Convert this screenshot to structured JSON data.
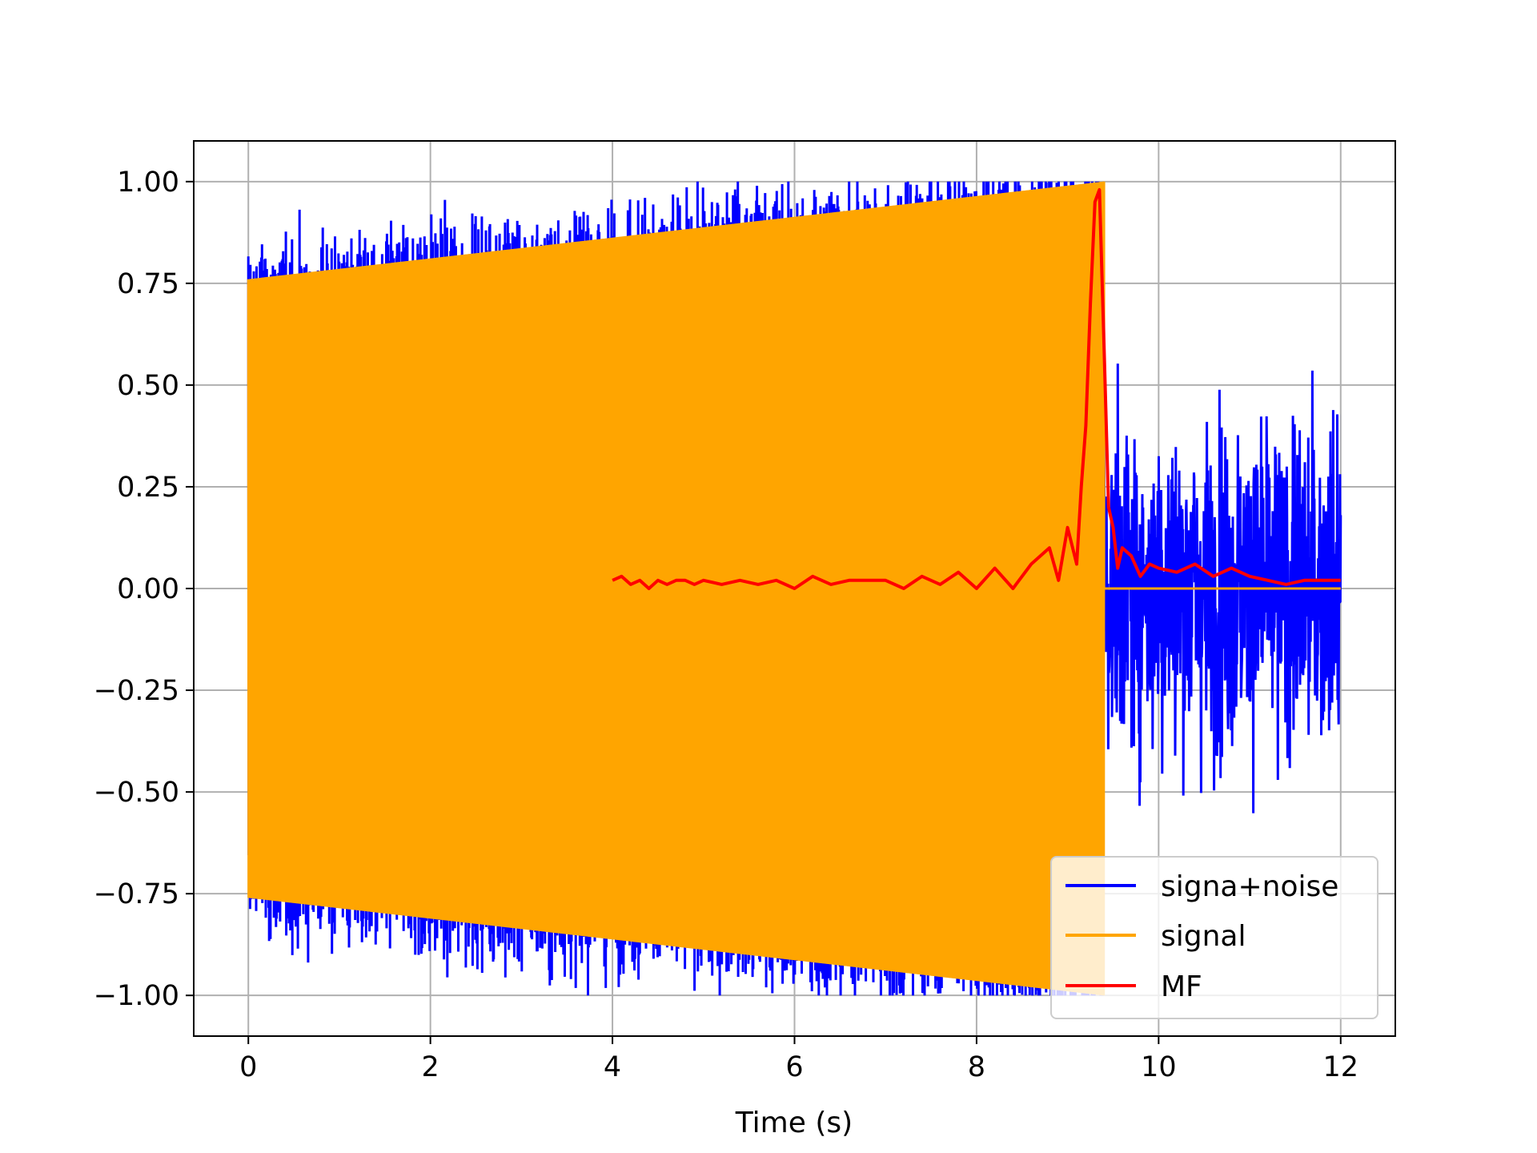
{
  "chart_data": {
    "type": "line",
    "title": "",
    "xlabel": "Time (s)",
    "ylabel": "",
    "xlim": [
      -0.6,
      12.6
    ],
    "ylim": [
      -1.1,
      1.1
    ],
    "grid": true,
    "legend_position": "lower-right",
    "x_ticks": [
      0,
      2,
      4,
      6,
      8,
      10,
      12
    ],
    "x_tick_labels": [
      "0",
      "2",
      "4",
      "6",
      "8",
      "10",
      "12"
    ],
    "y_ticks": [
      1.0,
      0.75,
      0.5,
      0.25,
      0.0,
      -0.25,
      -0.5,
      -0.75,
      -1.0
    ],
    "y_tick_labels": [
      "1.00",
      "0.75",
      "0.50",
      "0.25",
      "0.00",
      "−0.25",
      "−0.50",
      "−0.75",
      "−1.00"
    ],
    "series": [
      {
        "name": "signa+noise",
        "color": "#0000ff",
        "description_range": [
          0,
          12
        ],
        "values_peak": [
          1.0,
          -1.0
        ]
      },
      {
        "name": "signal",
        "color": "#ffa500",
        "chirp_start": 0,
        "chirp_end": 9.4,
        "amplitude_start": 0.76,
        "amplitude_end": 1.0
      },
      {
        "name": "MF",
        "color": "#ff0000",
        "x": [
          4.0,
          4.1,
          4.2,
          4.3,
          4.4,
          4.5,
          4.6,
          4.7,
          4.8,
          4.9,
          5.0,
          5.2,
          5.4,
          5.6,
          5.8,
          6.0,
          6.2,
          6.4,
          6.6,
          6.8,
          7.0,
          7.2,
          7.4,
          7.6,
          7.8,
          8.0,
          8.2,
          8.4,
          8.6,
          8.8,
          8.9,
          9.0,
          9.1,
          9.15,
          9.2,
          9.25,
          9.3,
          9.35,
          9.4,
          9.45,
          9.5,
          9.55,
          9.6,
          9.7,
          9.8,
          9.9,
          10.0,
          10.2,
          10.4,
          10.6,
          10.8,
          11.0,
          11.2,
          11.4,
          11.6,
          11.8,
          12.0
        ],
        "y": [
          0.02,
          0.03,
          0.01,
          0.02,
          0.0,
          0.02,
          0.01,
          0.02,
          0.02,
          0.01,
          0.02,
          0.01,
          0.02,
          0.01,
          0.02,
          0.0,
          0.03,
          0.01,
          0.02,
          0.02,
          0.02,
          0.0,
          0.03,
          0.01,
          0.04,
          0.0,
          0.05,
          0.0,
          0.06,
          0.1,
          0.02,
          0.15,
          0.06,
          0.25,
          0.4,
          0.7,
          0.95,
          0.98,
          0.6,
          0.2,
          0.15,
          0.05,
          0.1,
          0.08,
          0.03,
          0.06,
          0.05,
          0.04,
          0.06,
          0.03,
          0.05,
          0.03,
          0.02,
          0.01,
          0.02,
          0.02,
          0.02
        ]
      }
    ]
  }
}
